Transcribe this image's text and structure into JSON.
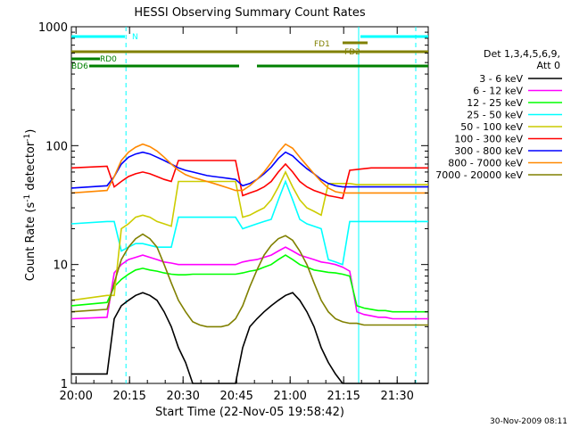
{
  "chart_data": {
    "type": "line",
    "title": "HESSI Observing Summary Count Rates",
    "xlabel": "Start Time (22-Nov-05 19:58:42)",
    "ylabel_main": "Count Rate (s",
    "ylabel_sup1": "-1",
    "ylabel_mid": " detector",
    "ylabel_sup2": "-1",
    "ylabel_end": ")",
    "footer": "30-Nov-2009 08:11",
    "x_unit": "minutes since 19:58:42",
    "xlim": [
      0,
      100
    ],
    "ylim": [
      1,
      1000
    ],
    "yscale": "log",
    "x_ticks": [
      {
        "x": 1.3,
        "label": "20:00"
      },
      {
        "x": 16.3,
        "label": "20:15"
      },
      {
        "x": 31.3,
        "label": "20:30"
      },
      {
        "x": 46.3,
        "label": "20:45"
      },
      {
        "x": 61.3,
        "label": "21:00"
      },
      {
        "x": 76.3,
        "label": "21:15"
      },
      {
        "x": 91.3,
        "label": "21:30"
      }
    ],
    "y_ticks": [
      {
        "y": 1,
        "label": "1"
      },
      {
        "y": 10,
        "label": "10"
      },
      {
        "y": 100,
        "label": "100"
      },
      {
        "y": 1000,
        "label": "1000"
      }
    ],
    "legend_title1": "Det 1,3,4,5,6,9,",
    "legend_title2": "Att 0",
    "series": [
      {
        "name": "3 - 6 keV",
        "color": "#000000",
        "x": [
          0,
          10,
          12,
          14,
          16,
          18,
          20,
          22,
          24,
          26,
          28,
          30,
          32,
          34,
          36,
          38,
          40,
          42,
          44,
          46,
          48,
          50,
          52,
          54,
          56,
          58,
          60,
          62,
          64,
          66,
          68,
          70,
          72,
          74,
          76,
          78,
          80,
          82,
          84,
          86,
          88,
          90,
          92,
          94,
          96,
          98,
          100
        ],
        "y": [
          1.2,
          1.2,
          3.5,
          4.5,
          5,
          5.5,
          5.8,
          5.5,
          5,
          4,
          3,
          2,
          1.5,
          1,
          1,
          1,
          1,
          1,
          1,
          1,
          2,
          3,
          3.5,
          4,
          4.5,
          5,
          5.5,
          5.8,
          5,
          4,
          3,
          2,
          1.5,
          1.2,
          1,
          1,
          1,
          1,
          1,
          1,
          1,
          1,
          1,
          1,
          1,
          1,
          1
        ]
      },
      {
        "name": "6 - 12 keV",
        "color": "#ff00ff",
        "x": [
          0,
          10,
          12,
          14,
          16,
          18,
          20,
          22,
          24,
          26,
          28,
          30,
          32,
          34,
          36,
          38,
          40,
          42,
          44,
          46,
          48,
          50,
          52,
          54,
          56,
          58,
          60,
          62,
          64,
          66,
          68,
          70,
          72,
          74,
          76,
          78,
          80,
          82,
          84,
          86,
          88,
          90,
          92,
          94,
          96,
          98,
          100
        ],
        "y": [
          3.5,
          3.6,
          8.5,
          10,
          11,
          11.5,
          12,
          11.5,
          11,
          10.5,
          10.3,
          10,
          10,
          10,
          10,
          10,
          10,
          10,
          10,
          10,
          10.5,
          10.8,
          11,
          11.5,
          12,
          13,
          14,
          13,
          12,
          11.5,
          11,
          10.5,
          10.3,
          10,
          9.5,
          8.8,
          4,
          3.8,
          3.7,
          3.6,
          3.6,
          3.5,
          3.5,
          3.5,
          3.5,
          3.5,
          3.5
        ]
      },
      {
        "name": "12 - 25 keV",
        "color": "#00ff00",
        "x": [
          0,
          10,
          12,
          14,
          16,
          18,
          20,
          22,
          24,
          26,
          28,
          30,
          32,
          34,
          36,
          38,
          40,
          42,
          44,
          46,
          48,
          50,
          52,
          54,
          56,
          58,
          60,
          62,
          64,
          66,
          68,
          70,
          72,
          74,
          76,
          78,
          80,
          82,
          84,
          86,
          88,
          90,
          92,
          94,
          96,
          98,
          100
        ],
        "y": [
          4.5,
          4.8,
          6.5,
          7.5,
          8.3,
          9,
          9.3,
          9,
          8.8,
          8.5,
          8.3,
          8.2,
          8.2,
          8.3,
          8.3,
          8.3,
          8.3,
          8.3,
          8.3,
          8.3,
          8.5,
          8.8,
          9,
          9.5,
          10,
          11,
          12,
          11,
          10,
          9.5,
          9,
          8.8,
          8.6,
          8.5,
          8.3,
          8,
          4.5,
          4.3,
          4.2,
          4.1,
          4.1,
          4,
          4,
          4,
          4,
          4,
          4
        ]
      },
      {
        "name": "25 - 50 keV",
        "color": "#00ffff",
        "x": [
          0,
          10,
          12,
          14,
          16,
          18,
          20,
          22,
          24,
          26,
          28,
          30,
          32,
          34,
          36,
          38,
          40,
          42,
          44,
          46,
          48,
          50,
          52,
          54,
          56,
          58,
          60,
          62,
          64,
          66,
          68,
          70,
          72,
          74,
          76,
          78,
          80,
          82,
          84,
          86,
          88,
          90,
          92,
          94,
          96,
          98,
          100
        ],
        "y": [
          22,
          23,
          23,
          13,
          14,
          15,
          15,
          14.5,
          14,
          14,
          14,
          25,
          25,
          25,
          25,
          25,
          25,
          25,
          25,
          25,
          20,
          21,
          22,
          23,
          24,
          35,
          50,
          35,
          24,
          22,
          21,
          20,
          11,
          10.5,
          10,
          23,
          23,
          23,
          23,
          23,
          23,
          23,
          23,
          23,
          23,
          23,
          23
        ]
      },
      {
        "name": "50 - 100 keV",
        "color": "#cccc00",
        "x": [
          0,
          10,
          12,
          14,
          16,
          18,
          20,
          22,
          24,
          26,
          28,
          30,
          32,
          34,
          36,
          38,
          40,
          42,
          44,
          46,
          48,
          50,
          52,
          54,
          56,
          58,
          60,
          62,
          64,
          66,
          68,
          70,
          72,
          74,
          76,
          78,
          80,
          82,
          84,
          86,
          88,
          90,
          92,
          94,
          96,
          98,
          100
        ],
        "y": [
          5,
          5.5,
          5.5,
          20,
          22,
          25,
          26,
          25,
          23,
          22,
          21,
          50,
          50,
          50,
          50,
          50,
          50,
          50,
          50,
          50,
          25,
          26,
          28,
          30,
          35,
          45,
          60,
          45,
          35,
          30,
          28,
          26,
          48,
          48,
          48,
          48,
          47,
          47,
          47,
          47,
          47,
          47,
          47,
          47,
          47,
          47,
          47
        ]
      },
      {
        "name": "100 - 300 keV",
        "color": "#ff0000",
        "x": [
          0,
          10,
          12,
          14,
          16,
          18,
          20,
          22,
          24,
          26,
          28,
          30,
          32,
          34,
          36,
          38,
          40,
          42,
          44,
          46,
          48,
          50,
          52,
          54,
          56,
          58,
          60,
          62,
          64,
          66,
          68,
          70,
          72,
          74,
          76,
          78,
          80,
          82,
          84,
          86,
          88,
          90,
          92,
          94,
          96,
          98,
          100
        ],
        "y": [
          65,
          67,
          45,
          50,
          55,
          58,
          60,
          58,
          55,
          52,
          50,
          75,
          75,
          75,
          75,
          75,
          75,
          75,
          75,
          75,
          38,
          40,
          42,
          45,
          50,
          60,
          70,
          60,
          50,
          45,
          42,
          40,
          38,
          37,
          36,
          62,
          63,
          64,
          65,
          65,
          65,
          65,
          65,
          65,
          65,
          65,
          65
        ]
      },
      {
        "name": "300 - 800 keV",
        "color": "#0000ff",
        "x": [
          0,
          10,
          12,
          14,
          16,
          18,
          20,
          22,
          24,
          26,
          28,
          30,
          32,
          34,
          36,
          38,
          40,
          42,
          44,
          46,
          48,
          50,
          52,
          54,
          56,
          58,
          60,
          62,
          64,
          66,
          68,
          70,
          72,
          74,
          76,
          78,
          80,
          82,
          84,
          86,
          88,
          90,
          92,
          94,
          96,
          98,
          100
        ],
        "y": [
          44,
          46,
          55,
          70,
          80,
          85,
          88,
          85,
          80,
          75,
          70,
          65,
          62,
          60,
          58,
          56,
          55,
          54,
          53,
          52,
          46,
          48,
          52,
          58,
          66,
          78,
          88,
          82,
          72,
          64,
          58,
          52,
          48,
          46,
          45,
          45,
          45,
          45,
          45,
          45,
          45,
          45,
          45,
          45,
          45,
          45,
          45
        ]
      },
      {
        "name": "800 - 7000 keV",
        "color": "#ff8800",
        "x": [
          0,
          10,
          12,
          14,
          16,
          18,
          20,
          22,
          24,
          26,
          28,
          30,
          32,
          34,
          36,
          38,
          40,
          42,
          44,
          46,
          48,
          50,
          52,
          54,
          56,
          58,
          60,
          62,
          64,
          66,
          68,
          70,
          72,
          74,
          76,
          78,
          80,
          82,
          84,
          86,
          88,
          90,
          92,
          94,
          96,
          98,
          100
        ],
        "y": [
          40,
          42,
          55,
          75,
          88,
          97,
          103,
          98,
          90,
          80,
          70,
          62,
          57,
          54,
          52,
          50,
          48,
          46,
          44,
          42,
          42,
          46,
          52,
          60,
          72,
          88,
          103,
          95,
          80,
          68,
          58,
          50,
          44,
          41,
          40,
          40,
          40,
          40,
          40,
          40,
          40,
          40,
          40,
          40,
          40,
          40,
          40
        ]
      },
      {
        "name": "7000 - 20000 keV",
        "color": "#808000",
        "x": [
          0,
          10,
          12,
          14,
          16,
          18,
          20,
          22,
          24,
          26,
          28,
          30,
          32,
          34,
          36,
          38,
          40,
          42,
          44,
          46,
          48,
          50,
          52,
          54,
          56,
          58,
          60,
          62,
          64,
          66,
          68,
          70,
          72,
          74,
          76,
          78,
          80,
          82,
          84,
          86,
          88,
          90,
          92,
          94,
          96,
          98,
          100
        ],
        "y": [
          4,
          4.2,
          7,
          11,
          14,
          16.5,
          18,
          16.5,
          14,
          10,
          7,
          5,
          4,
          3.3,
          3.1,
          3,
          3,
          3,
          3.1,
          3.5,
          4.5,
          6.5,
          9,
          12,
          14.5,
          16.5,
          17.5,
          16,
          13,
          10,
          7,
          5,
          4,
          3.5,
          3.3,
          3.2,
          3.2,
          3.1,
          3.1,
          3.1,
          3.1,
          3.1,
          3.1,
          3.1,
          3.1,
          3.1,
          3.1
        ]
      }
    ],
    "state_bars": [
      {
        "label": "N",
        "color": "#00ffff",
        "segments": [
          [
            0,
            15
          ],
          [
            81,
            100
          ]
        ]
      },
      {
        "label": "FD1",
        "color": "#808000",
        "segments": [
          [
            76,
            83
          ]
        ]
      },
      {
        "label": "FD2",
        "color": "#808000",
        "segments": [
          [
            0,
            100
          ]
        ]
      },
      {
        "label": "RD0",
        "color": "#008000",
        "segments": [
          [
            0,
            8
          ]
        ]
      },
      {
        "label": "BD6",
        "color": "#008000",
        "segments": [
          [
            5,
            31
          ],
          [
            31,
            47
          ],
          [
            52,
            81
          ],
          [
            81,
            100
          ]
        ]
      }
    ],
    "vlines": [
      {
        "x": 15.3,
        "color": "#00ffff",
        "style": "dashed"
      },
      {
        "x": 80.5,
        "color": "#00ffff",
        "style": "solid"
      },
      {
        "x": 96.5,
        "color": "#00ffff",
        "style": "dashed"
      }
    ]
  }
}
